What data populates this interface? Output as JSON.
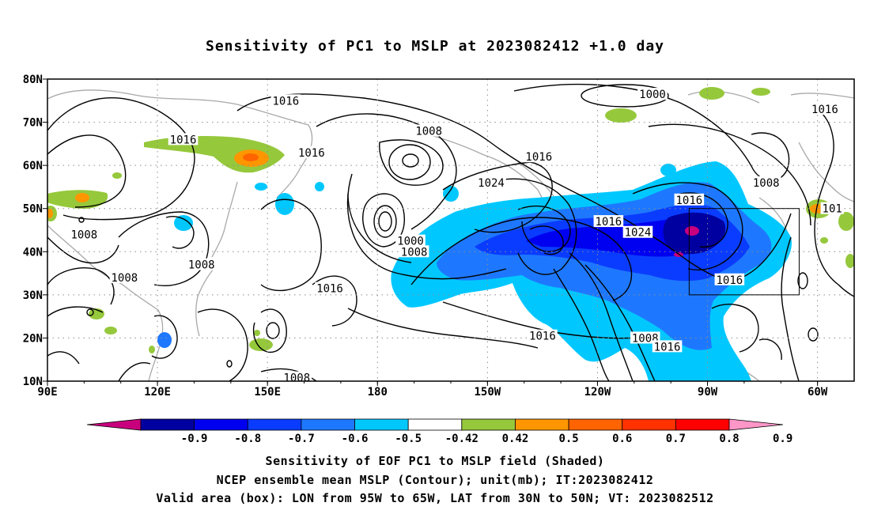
{
  "title": "Sensitivity of PC1 to MSLP at 2023082412 +1.0 day",
  "lat_labels": [
    "80N",
    "70N",
    "60N",
    "50N",
    "40N",
    "30N",
    "20N",
    "10N"
  ],
  "lon_labels": [
    "90E",
    "120E",
    "150E",
    "180",
    "150W",
    "120W",
    "90W",
    "60W"
  ],
  "lat_values": [
    80,
    70,
    60,
    50,
    40,
    30,
    20,
    10
  ],
  "lon_values": [
    90,
    120,
    150,
    180,
    210,
    240,
    270,
    300
  ],
  "colorbar": {
    "colors": [
      "#c8007e",
      "#0000a0",
      "#0000f0",
      "#0a3cff",
      "#1e78ff",
      "#00c8ff",
      "#ffffff",
      "#96c83c",
      "#ff9600",
      "#ff6400",
      "#ff3200",
      "#ff0000",
      "#ff96c8"
    ],
    "labels": [
      "-0.9",
      "-0.8",
      "-0.7",
      "-0.6",
      "-0.5",
      "-0.42",
      "0.42",
      "0.5",
      "0.6",
      "0.7",
      "0.8",
      "0.9"
    ]
  },
  "contour_labels": [
    {
      "text": "1016",
      "lon": 155,
      "lat": 75
    },
    {
      "text": "1000",
      "lon": 255,
      "lat": 76.5
    },
    {
      "text": "1016",
      "lon": 302,
      "lat": 73
    },
    {
      "text": "1008",
      "lon": 194,
      "lat": 68
    },
    {
      "text": "1016",
      "lon": 127,
      "lat": 66
    },
    {
      "text": "1016",
      "lon": 162,
      "lat": 63
    },
    {
      "text": "1016",
      "lon": 224,
      "lat": 62
    },
    {
      "text": "1024",
      "lon": 211,
      "lat": 56
    },
    {
      "text": "1008",
      "lon": 286,
      "lat": 56
    },
    {
      "text": "1016",
      "lon": 265,
      "lat": 52
    },
    {
      "text": "1016",
      "lon": 243,
      "lat": 47
    },
    {
      "text": "1024",
      "lon": 251,
      "lat": 44.5
    },
    {
      "text": "101",
      "lon": 304,
      "lat": 50
    },
    {
      "text": "1008",
      "lon": 100,
      "lat": 44
    },
    {
      "text": "1000",
      "lon": 189,
      "lat": 42.5
    },
    {
      "text": "1008",
      "lon": 190,
      "lat": 40
    },
    {
      "text": "1008",
      "lon": 132,
      "lat": 37
    },
    {
      "text": "1008",
      "lon": 111,
      "lat": 34
    },
    {
      "text": "1016",
      "lon": 276,
      "lat": 33.5
    },
    {
      "text": "1016",
      "lon": 167,
      "lat": 31.5
    },
    {
      "text": "1016",
      "lon": 225,
      "lat": 20.5
    },
    {
      "text": "1008",
      "lon": 253,
      "lat": 20
    },
    {
      "text": "1016",
      "lon": 259,
      "lat": 18
    },
    {
      "text": "1008",
      "lon": 158,
      "lat": 10.8
    }
  ],
  "valid_box": {
    "lon_min": 265,
    "lon_max": 295,
    "lat_min": 30,
    "lat_max": 50
  },
  "captions": {
    "line1": "Sensitivity of EOF PC1 to MSLP field (Shaded)",
    "line2": "NCEP ensemble mean MSLP (Contour); unit(mb); IT:2023082412",
    "line3": "Valid area (box): LON from 95W to 65W, LAT from 30N to 50N; VT: 2023082512"
  }
}
